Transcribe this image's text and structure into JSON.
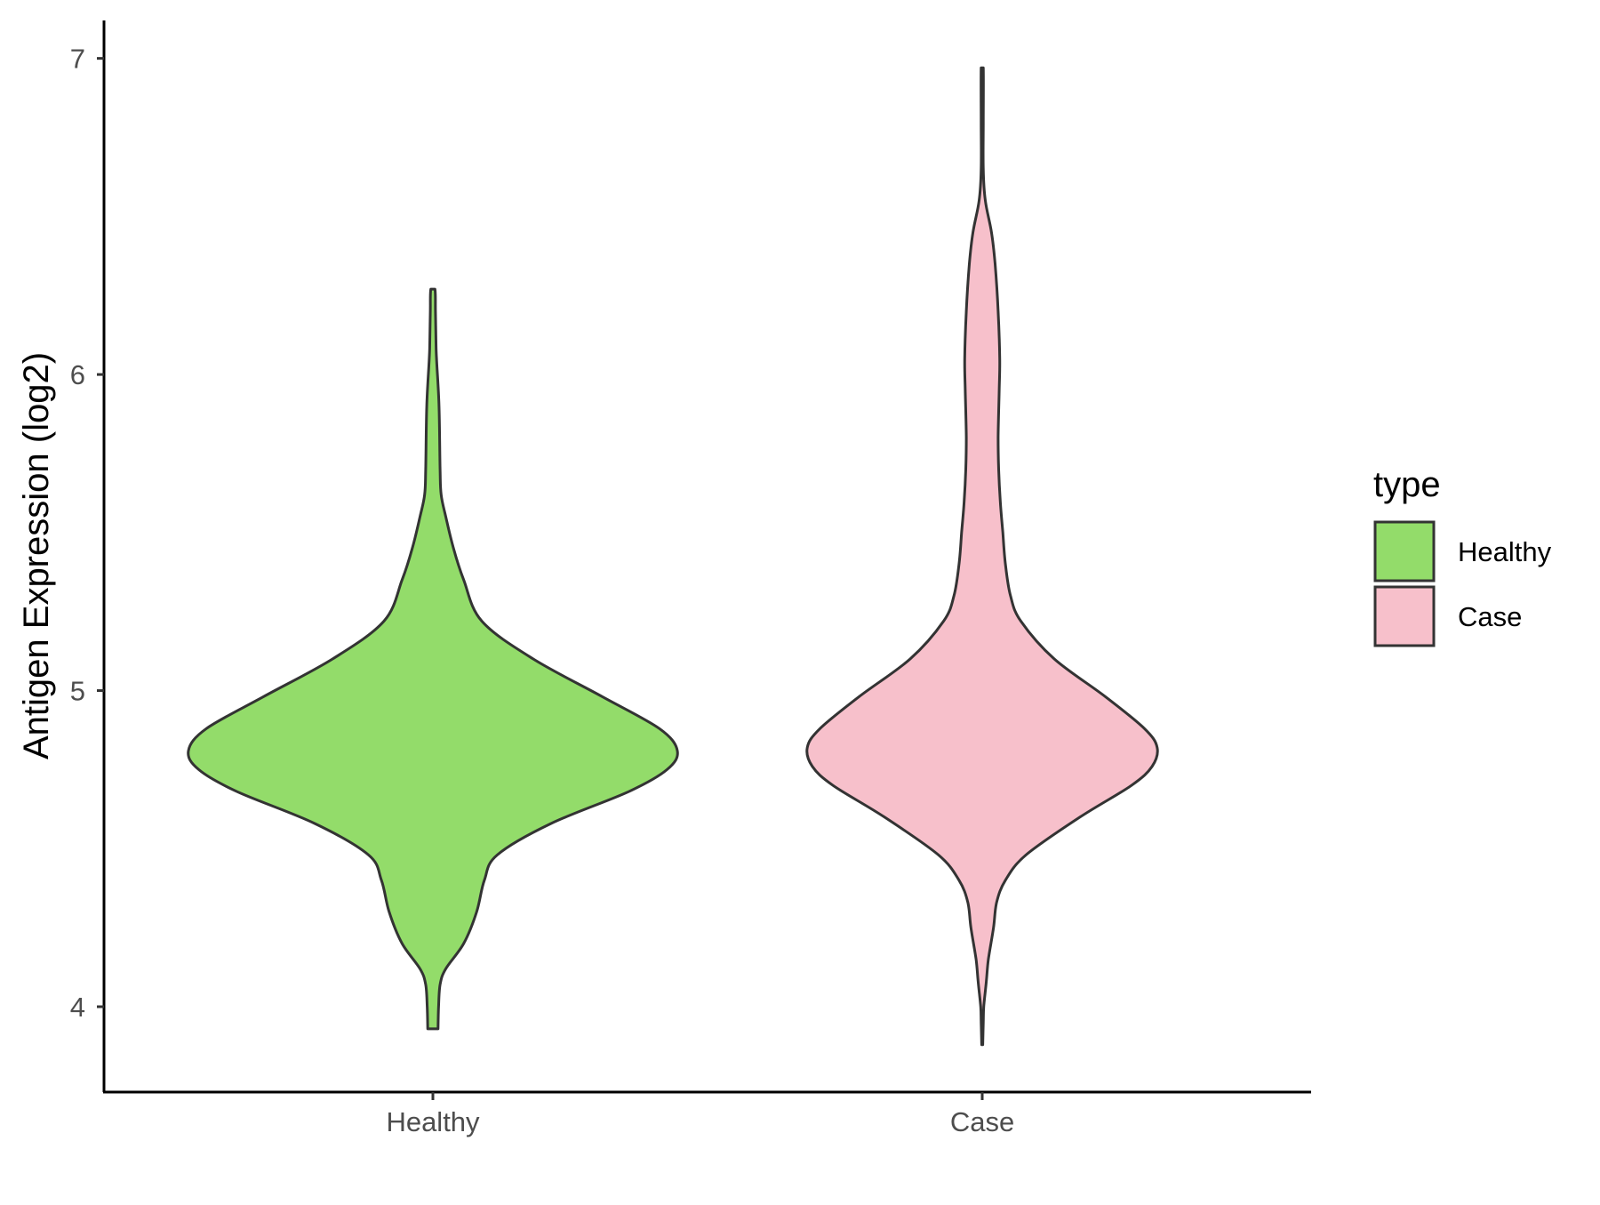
{
  "chart_data": {
    "type": "violin",
    "xlabel": "",
    "ylabel": "Antigen Expression (log2)",
    "categories": [
      "Healthy",
      "Case"
    ],
    "ylim": [
      3.73,
      7.12
    ],
    "yticks": [
      4,
      5,
      6,
      7
    ],
    "legend": {
      "title": "type",
      "placement": "right",
      "entries": [
        {
          "label": "Healthy",
          "color": "#93DC6A"
        },
        {
          "label": "Case",
          "color": "#F7C0CB"
        }
      ]
    },
    "series": [
      {
        "name": "Healthy",
        "color": "#93DC6A",
        "min": 3.93,
        "max": 6.27,
        "density_profile": [
          [
            3.93,
            0.01
          ],
          [
            4.0,
            0.011
          ],
          [
            4.07,
            0.014
          ],
          [
            4.12,
            0.025
          ],
          [
            4.2,
            0.06
          ],
          [
            4.3,
            0.085
          ],
          [
            4.4,
            0.1
          ],
          [
            4.48,
            0.125
          ],
          [
            4.58,
            0.23
          ],
          [
            4.68,
            0.38
          ],
          [
            4.75,
            0.455
          ],
          [
            4.81,
            0.475
          ],
          [
            4.88,
            0.44
          ],
          [
            4.98,
            0.33
          ],
          [
            5.1,
            0.195
          ],
          [
            5.22,
            0.095
          ],
          [
            5.35,
            0.06
          ],
          [
            5.45,
            0.04
          ],
          [
            5.55,
            0.025
          ],
          [
            5.62,
            0.016
          ],
          [
            5.7,
            0.014
          ],
          [
            5.9,
            0.012
          ],
          [
            6.05,
            0.007
          ],
          [
            6.1,
            0.006
          ],
          [
            6.2,
            0.005
          ],
          [
            6.27,
            0.004
          ]
        ]
      },
      {
        "name": "Case",
        "color": "#F7C0CB",
        "min": 3.88,
        "max": 6.97,
        "density_profile": [
          [
            3.88,
            0.001
          ],
          [
            3.95,
            0.002
          ],
          [
            4.0,
            0.003
          ],
          [
            4.08,
            0.008
          ],
          [
            4.15,
            0.012
          ],
          [
            4.25,
            0.022
          ],
          [
            4.33,
            0.028
          ],
          [
            4.4,
            0.045
          ],
          [
            4.48,
            0.085
          ],
          [
            4.6,
            0.19
          ],
          [
            4.7,
            0.29
          ],
          [
            4.76,
            0.33
          ],
          [
            4.82,
            0.34
          ],
          [
            4.88,
            0.315
          ],
          [
            4.98,
            0.24
          ],
          [
            5.1,
            0.14
          ],
          [
            5.22,
            0.075
          ],
          [
            5.3,
            0.055
          ],
          [
            5.4,
            0.045
          ],
          [
            5.5,
            0.04
          ],
          [
            5.6,
            0.035
          ],
          [
            5.7,
            0.032
          ],
          [
            5.8,
            0.031
          ],
          [
            5.95,
            0.033
          ],
          [
            6.05,
            0.034
          ],
          [
            6.2,
            0.031
          ],
          [
            6.35,
            0.025
          ],
          [
            6.45,
            0.018
          ],
          [
            6.55,
            0.006
          ],
          [
            6.65,
            0.002
          ],
          [
            6.8,
            0.002
          ],
          [
            6.97,
            0.002
          ]
        ]
      }
    ],
    "grid": false
  },
  "colors": {
    "outline": "#333333",
    "axis": "#000000",
    "background": "#ffffff"
  }
}
